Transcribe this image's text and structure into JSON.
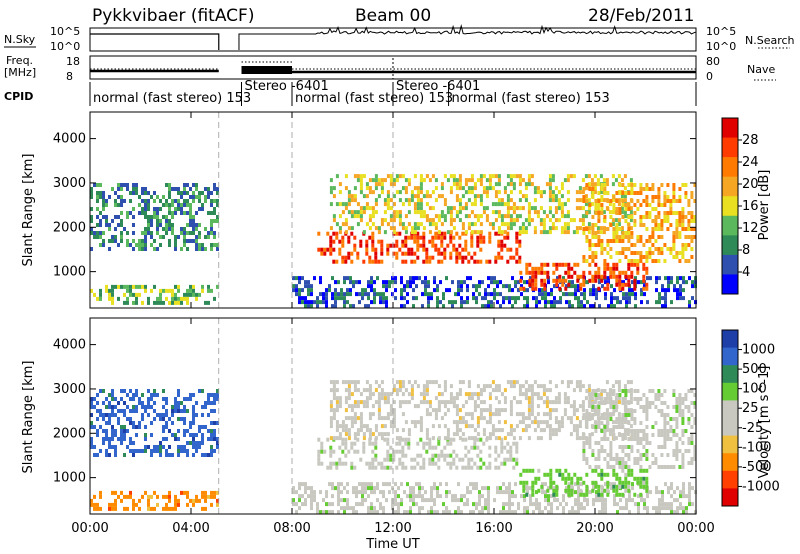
{
  "header": {
    "station": "Pykkvibaer (fitACF)",
    "beam": "Beam 00",
    "date": "28/Feb/2011"
  },
  "strip_labels": {
    "nsky": "N.Sky",
    "freq_line1": "Freq.",
    "freq_line2": "[MHz]",
    "cpid": "CPID",
    "nsearch": "N.Search",
    "nave": "Nave"
  },
  "strip_ticks": {
    "nsky_left_top": "10^5",
    "nsky_left_bottom": "10^0",
    "nsky_right_top": "10^5",
    "nsky_right_bottom": "10^0",
    "freq_top": "18",
    "freq_bottom": "8",
    "nave_top": "80",
    "nave_bottom": "0"
  },
  "cpid_segments": [
    {
      "label": "normal (fast stereo)  153",
      "start": 0,
      "end": 5.1
    },
    {
      "label": "Stereo  -6401",
      "start": 6.0,
      "end": 8.0
    },
    {
      "label": "normal (fast stereo) 153",
      "start": 8.0,
      "end": 12.0
    },
    {
      "label": "Stereo  -6401",
      "start": 12.0,
      "end": 14.2
    },
    {
      "label": "normal (fast stereo)  153",
      "start": 14.2,
      "end": 24.0
    }
  ],
  "colors": {
    "power_scale": [
      "#0000ff",
      "#3050b0",
      "#2e8b57",
      "#5cb85c",
      "#e8e020",
      "#f5a623",
      "#ff7a00",
      "#ff3b00",
      "#e00000"
    ],
    "velocity_scale": [
      "#1f3fa8",
      "#3366cc",
      "#2e8b57",
      "#66cc33",
      "#c8c8c0",
      "#c8c8c0",
      "#f0c040",
      "#ff8c00",
      "#ff4000",
      "#e00000"
    ],
    "ground": "#c8c8c0"
  },
  "chart_data": [
    {
      "type": "heatmap",
      "title": "",
      "xlabel": "Time UT",
      "ylabel": "Slant Range [km]",
      "colorbar_label": "Power [dB]",
      "colorbar_ticks": [
        "4",
        "8",
        "12",
        "16",
        "20",
        "24",
        "28"
      ],
      "xlim": [
        0,
        24
      ],
      "ylim": [
        180,
        4600
      ],
      "x_ticks": [
        "00:00",
        "04:00",
        "08:00",
        "12:00",
        "16:00",
        "20:00",
        "00:00"
      ],
      "y_ticks": [
        "1000",
        "2000",
        "3000",
        "4000"
      ],
      "data_gaps_ut": [
        [
          5.1,
          8.0
        ]
      ],
      "echo_regions": [
        {
          "t": [
            0.0,
            5.1
          ],
          "range_km": [
            250,
            700
          ],
          "power_db": 14
        },
        {
          "t": [
            0.0,
            5.0
          ],
          "range_km": [
            1500,
            3000
          ],
          "power_db": 10
        },
        {
          "t": [
            8.0,
            24.0
          ],
          "range_km": [
            250,
            900
          ],
          "power_db": 6
        },
        {
          "t": [
            9.0,
            17.0
          ],
          "range_km": [
            1200,
            1900
          ],
          "power_db": 26
        },
        {
          "t": [
            9.5,
            21.5
          ],
          "range_km": [
            1900,
            3200
          ],
          "power_db": 16
        },
        {
          "t": [
            17.0,
            22.0
          ],
          "range_km": [
            600,
            1200
          ],
          "power_db": 26
        },
        {
          "t": [
            19.5,
            24.0
          ],
          "range_km": [
            1200,
            3000
          ],
          "power_db": 20
        }
      ]
    },
    {
      "type": "heatmap",
      "title": "",
      "xlabel": "Time UT",
      "ylabel": "Slant Range [km]",
      "colorbar_label": "Velocity [m s^-1]",
      "colorbar_ticks": [
        "1000",
        "500",
        "100",
        "25",
        "-25",
        "-100",
        "-500",
        "-1000"
      ],
      "xlim": [
        0,
        24
      ],
      "ylim": [
        180,
        4600
      ],
      "x_ticks": [
        "00:00",
        "04:00",
        "08:00",
        "12:00",
        "16:00",
        "20:00",
        "00:00"
      ],
      "y_ticks": [
        "1000",
        "2000",
        "3000",
        "4000"
      ],
      "data_gaps_ut": [
        [
          5.1,
          8.0
        ]
      ],
      "echo_regions": [
        {
          "t": [
            0.0,
            5.1
          ],
          "range_km": [
            250,
            700
          ],
          "velocity": -200
        },
        {
          "t": [
            0.0,
            5.0
          ],
          "range_km": [
            1500,
            3000
          ],
          "velocity": 300
        },
        {
          "t": [
            8.0,
            24.0
          ],
          "range_km": [
            250,
            900
          ],
          "velocity": 0
        },
        {
          "t": [
            9.0,
            17.0
          ],
          "range_km": [
            1200,
            1900
          ],
          "velocity": 0
        },
        {
          "t": [
            9.5,
            21.5
          ],
          "range_km": [
            1900,
            3200
          ],
          "velocity": -50
        },
        {
          "t": [
            17.0,
            22.0
          ],
          "range_km": [
            600,
            1200
          ],
          "velocity": 200
        },
        {
          "t": [
            19.5,
            24.0
          ],
          "range_km": [
            1200,
            3000
          ],
          "velocity": 0
        }
      ]
    }
  ]
}
